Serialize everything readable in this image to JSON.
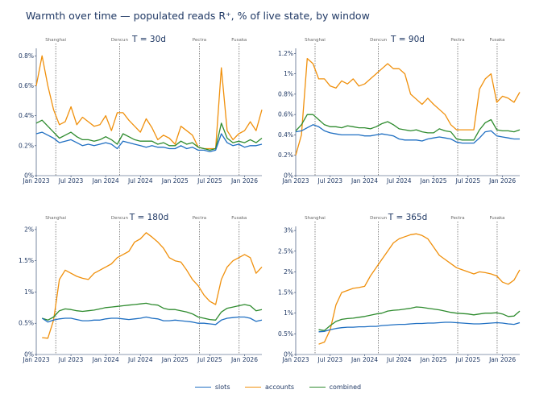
{
  "title": "Warmth over time — populated reads R⁺, % of live state, by window",
  "colors": {
    "slots": "#1f6fc2",
    "accounts": "#f0900c",
    "combined": "#2e8b2e"
  },
  "legend": [
    {
      "key": "slots",
      "label": "slots"
    },
    {
      "key": "accounts",
      "label": "accounts"
    },
    {
      "key": "combined",
      "label": "combined"
    }
  ],
  "events": [
    {
      "label": "Shanghai",
      "date": "2023-04-12"
    },
    {
      "label": "Dencun",
      "date": "2024-03-13"
    },
    {
      "label": "Pectra",
      "date": "2025-05-07"
    },
    {
      "label": "Fusaka",
      "date": "2025-12-03"
    }
  ],
  "x_ticks": [
    "Jan 2023",
    "Jul 2023",
    "Jan 2024",
    "Jul 2024",
    "Jan 2025",
    "Jul 2025",
    "Jan 2026"
  ],
  "chart_data": [
    {
      "type": "line",
      "title": "T = 30d",
      "x": [
        "2023-01",
        "2023-02",
        "2023-03",
        "2023-04",
        "2023-05",
        "2023-06",
        "2023-07",
        "2023-08",
        "2023-09",
        "2023-10",
        "2023-11",
        "2023-12",
        "2024-01",
        "2024-02",
        "2024-03",
        "2024-04",
        "2024-05",
        "2024-06",
        "2024-07",
        "2024-08",
        "2024-09",
        "2024-10",
        "2024-11",
        "2024-12",
        "2025-01",
        "2025-02",
        "2025-03",
        "2025-04",
        "2025-05",
        "2025-06",
        "2025-07",
        "2025-08",
        "2025-09",
        "2025-10",
        "2025-11",
        "2025-12",
        "2026-01",
        "2026-02",
        "2026-03",
        "2026-04"
      ],
      "xlim": [
        "2023-01",
        "2026-04"
      ],
      "ylim": [
        0,
        0.85
      ],
      "y_ticks": [
        0,
        0.2,
        0.4,
        0.6,
        0.8
      ],
      "y_tick_labels": [
        "0%",
        "0.2%",
        "0.4%",
        "0.6%",
        "0.8%"
      ],
      "series": [
        {
          "name": "slots",
          "values": [
            0.28,
            0.29,
            0.27,
            0.25,
            0.22,
            0.23,
            0.24,
            0.22,
            0.2,
            0.21,
            0.2,
            0.21,
            0.22,
            0.21,
            0.18,
            0.23,
            0.22,
            0.21,
            0.2,
            0.19,
            0.2,
            0.19,
            0.19,
            0.18,
            0.18,
            0.2,
            0.18,
            0.19,
            0.17,
            0.17,
            0.16,
            0.17,
            0.28,
            0.22,
            0.2,
            0.21,
            0.19,
            0.2,
            0.2,
            0.21
          ]
        },
        {
          "name": "accounts",
          "values": [
            0.6,
            0.8,
            0.6,
            0.44,
            0.34,
            0.36,
            0.46,
            0.34,
            0.39,
            0.36,
            0.33,
            0.34,
            0.4,
            0.3,
            0.42,
            0.42,
            0.37,
            0.33,
            0.29,
            0.38,
            0.32,
            0.24,
            0.27,
            0.25,
            0.21,
            0.33,
            0.3,
            0.27,
            0.19,
            0.18,
            0.18,
            0.18,
            0.72,
            0.3,
            0.24,
            0.28,
            0.3,
            0.36,
            0.3,
            0.44
          ]
        },
        {
          "name": "combined",
          "values": [
            0.35,
            0.37,
            0.33,
            0.29,
            0.25,
            0.27,
            0.29,
            0.26,
            0.24,
            0.24,
            0.23,
            0.24,
            0.26,
            0.24,
            0.21,
            0.28,
            0.26,
            0.24,
            0.23,
            0.23,
            0.23,
            0.21,
            0.22,
            0.2,
            0.2,
            0.23,
            0.21,
            0.22,
            0.19,
            0.18,
            0.17,
            0.18,
            0.35,
            0.25,
            0.22,
            0.23,
            0.22,
            0.24,
            0.22,
            0.25
          ]
        }
      ]
    },
    {
      "type": "line",
      "title": "T = 90d",
      "x": [
        "2023-01",
        "2023-02",
        "2023-03",
        "2023-04",
        "2023-05",
        "2023-06",
        "2023-07",
        "2023-08",
        "2023-09",
        "2023-10",
        "2023-11",
        "2023-12",
        "2024-01",
        "2024-02",
        "2024-03",
        "2024-04",
        "2024-05",
        "2024-06",
        "2024-07",
        "2024-08",
        "2024-09",
        "2024-10",
        "2024-11",
        "2024-12",
        "2025-01",
        "2025-02",
        "2025-03",
        "2025-04",
        "2025-05",
        "2025-06",
        "2025-07",
        "2025-08",
        "2025-09",
        "2025-10",
        "2025-11",
        "2025-12",
        "2026-01",
        "2026-02",
        "2026-03",
        "2026-04"
      ],
      "xlim": [
        "2023-01",
        "2026-04"
      ],
      "ylim": [
        0,
        1.25
      ],
      "y_ticks": [
        0,
        0.2,
        0.4,
        0.6,
        0.8,
        1.0,
        1.2
      ],
      "y_tick_labels": [
        "0%",
        "0.2%",
        "0.4%",
        "0.6%",
        "0.8%",
        "1%",
        "1.2%"
      ],
      "series": [
        {
          "name": "slots",
          "values": [
            0.43,
            0.44,
            0.47,
            0.5,
            0.48,
            0.44,
            0.42,
            0.41,
            0.4,
            0.4,
            0.4,
            0.4,
            0.39,
            0.39,
            0.4,
            0.41,
            0.4,
            0.39,
            0.36,
            0.35,
            0.35,
            0.35,
            0.34,
            0.36,
            0.37,
            0.38,
            0.37,
            0.36,
            0.33,
            0.32,
            0.32,
            0.32,
            0.37,
            0.43,
            0.44,
            0.39,
            0.38,
            0.37,
            0.36,
            0.36
          ]
        },
        {
          "name": "accounts",
          "values": [
            0.2,
            0.4,
            1.15,
            1.1,
            0.95,
            0.95,
            0.88,
            0.86,
            0.93,
            0.9,
            0.95,
            0.88,
            0.9,
            0.95,
            1.0,
            1.05,
            1.1,
            1.05,
            1.05,
            1.0,
            0.8,
            0.75,
            0.7,
            0.76,
            0.7,
            0.65,
            0.6,
            0.5,
            0.45,
            0.45,
            0.45,
            0.45,
            0.85,
            0.95,
            1.0,
            0.72,
            0.78,
            0.76,
            0.72,
            0.82
          ]
        },
        {
          "name": "combined",
          "values": [
            0.44,
            0.5,
            0.6,
            0.6,
            0.55,
            0.5,
            0.48,
            0.48,
            0.47,
            0.49,
            0.48,
            0.47,
            0.47,
            0.46,
            0.48,
            0.51,
            0.53,
            0.5,
            0.46,
            0.45,
            0.44,
            0.45,
            0.43,
            0.42,
            0.42,
            0.46,
            0.44,
            0.43,
            0.36,
            0.35,
            0.35,
            0.35,
            0.45,
            0.52,
            0.55,
            0.45,
            0.44,
            0.44,
            0.43,
            0.45
          ]
        }
      ]
    },
    {
      "type": "line",
      "title": "T = 180d",
      "x": [
        "2023-01",
        "2023-02",
        "2023-03",
        "2023-04",
        "2023-05",
        "2023-06",
        "2023-07",
        "2023-08",
        "2023-09",
        "2023-10",
        "2023-11",
        "2023-12",
        "2024-01",
        "2024-02",
        "2024-03",
        "2024-04",
        "2024-05",
        "2024-06",
        "2024-07",
        "2024-08",
        "2024-09",
        "2024-10",
        "2024-11",
        "2024-12",
        "2025-01",
        "2025-02",
        "2025-03",
        "2025-04",
        "2025-05",
        "2025-06",
        "2025-07",
        "2025-08",
        "2025-09",
        "2025-10",
        "2025-11",
        "2025-12",
        "2026-01",
        "2026-02",
        "2026-03",
        "2026-04"
      ],
      "xlim": [
        "2023-01",
        "2026-04"
      ],
      "ylim": [
        0,
        2.05
      ],
      "y_ticks": [
        0,
        0.5,
        1.0,
        1.5,
        2.0
      ],
      "y_tick_labels": [
        "0%",
        "0.5%",
        "1%",
        "1.5%",
        "2%"
      ],
      "series": [
        {
          "name": "slots",
          "values": [
            null,
            0.58,
            0.52,
            0.55,
            0.57,
            0.58,
            0.58,
            0.56,
            0.54,
            0.54,
            0.55,
            0.55,
            0.57,
            0.58,
            0.58,
            0.57,
            0.56,
            0.57,
            0.58,
            0.6,
            0.58,
            0.57,
            0.54,
            0.54,
            0.55,
            0.54,
            0.53,
            0.52,
            0.5,
            0.5,
            0.49,
            0.48,
            0.55,
            0.58,
            0.59,
            0.6,
            0.6,
            0.58,
            0.53,
            0.55
          ]
        },
        {
          "name": "accounts",
          "values": [
            null,
            0.27,
            0.26,
            0.55,
            1.2,
            1.35,
            1.3,
            1.25,
            1.22,
            1.2,
            1.3,
            1.35,
            1.4,
            1.45,
            1.55,
            1.6,
            1.65,
            1.8,
            1.85,
            1.95,
            1.88,
            1.8,
            1.7,
            1.55,
            1.5,
            1.48,
            1.35,
            1.2,
            1.1,
            0.95,
            0.85,
            0.8,
            1.2,
            1.4,
            1.5,
            1.55,
            1.6,
            1.55,
            1.3,
            1.4
          ]
        },
        {
          "name": "combined",
          "values": [
            null,
            0.58,
            0.55,
            0.6,
            0.7,
            0.73,
            0.72,
            0.7,
            0.69,
            0.7,
            0.71,
            0.73,
            0.75,
            0.76,
            0.77,
            0.78,
            0.79,
            0.8,
            0.81,
            0.82,
            0.8,
            0.79,
            0.74,
            0.72,
            0.72,
            0.7,
            0.68,
            0.65,
            0.6,
            0.58,
            0.56,
            0.55,
            0.68,
            0.74,
            0.76,
            0.78,
            0.8,
            0.78,
            0.7,
            0.72
          ]
        }
      ]
    },
    {
      "type": "line",
      "title": "T = 365d",
      "x": [
        "2023-01",
        "2023-02",
        "2023-03",
        "2023-04",
        "2023-05",
        "2023-06",
        "2023-07",
        "2023-08",
        "2023-09",
        "2023-10",
        "2023-11",
        "2023-12",
        "2024-01",
        "2024-02",
        "2024-03",
        "2024-04",
        "2024-05",
        "2024-06",
        "2024-07",
        "2024-08",
        "2024-09",
        "2024-10",
        "2024-11",
        "2024-12",
        "2025-01",
        "2025-02",
        "2025-03",
        "2025-04",
        "2025-05",
        "2025-06",
        "2025-07",
        "2025-08",
        "2025-09",
        "2025-10",
        "2025-11",
        "2025-12",
        "2026-01",
        "2026-02",
        "2026-03",
        "2026-04"
      ],
      "xlim": [
        "2023-01",
        "2026-04"
      ],
      "ylim": [
        0,
        3.1
      ],
      "y_ticks": [
        0,
        0.5,
        1.0,
        1.5,
        2.0,
        2.5,
        3.0
      ],
      "y_tick_labels": [
        "0%",
        "0.5%",
        "1%",
        "1.5%",
        "2%",
        "2.5%",
        "3%"
      ],
      "series": [
        {
          "name": "slots",
          "values": [
            null,
            null,
            null,
            null,
            0.55,
            0.56,
            0.6,
            0.63,
            0.65,
            0.66,
            0.66,
            0.67,
            0.67,
            0.68,
            0.68,
            0.7,
            0.71,
            0.72,
            0.73,
            0.73,
            0.74,
            0.75,
            0.75,
            0.76,
            0.76,
            0.77,
            0.78,
            0.78,
            0.77,
            0.76,
            0.75,
            0.74,
            0.74,
            0.75,
            0.76,
            0.77,
            0.76,
            0.74,
            0.73,
            0.77
          ]
        },
        {
          "name": "accounts",
          "values": [
            null,
            null,
            null,
            null,
            0.25,
            0.3,
            0.6,
            1.2,
            1.5,
            1.55,
            1.6,
            1.62,
            1.65,
            1.9,
            2.1,
            2.3,
            2.5,
            2.7,
            2.8,
            2.85,
            2.9,
            2.92,
            2.88,
            2.8,
            2.6,
            2.4,
            2.3,
            2.2,
            2.1,
            2.05,
            2.0,
            1.95,
            2.0,
            1.98,
            1.95,
            1.9,
            1.75,
            1.7,
            1.8,
            2.05
          ]
        },
        {
          "name": "combined",
          "values": [
            null,
            null,
            null,
            null,
            0.6,
            0.58,
            0.7,
            0.8,
            0.85,
            0.87,
            0.88,
            0.9,
            0.92,
            0.95,
            0.98,
            1.0,
            1.05,
            1.07,
            1.08,
            1.1,
            1.12,
            1.15,
            1.14,
            1.12,
            1.1,
            1.08,
            1.05,
            1.02,
            1.0,
            0.99,
            0.98,
            0.96,
            0.98,
            1.0,
            1.0,
            1.01,
            0.98,
            0.92,
            0.93,
            1.05
          ]
        }
      ]
    }
  ]
}
